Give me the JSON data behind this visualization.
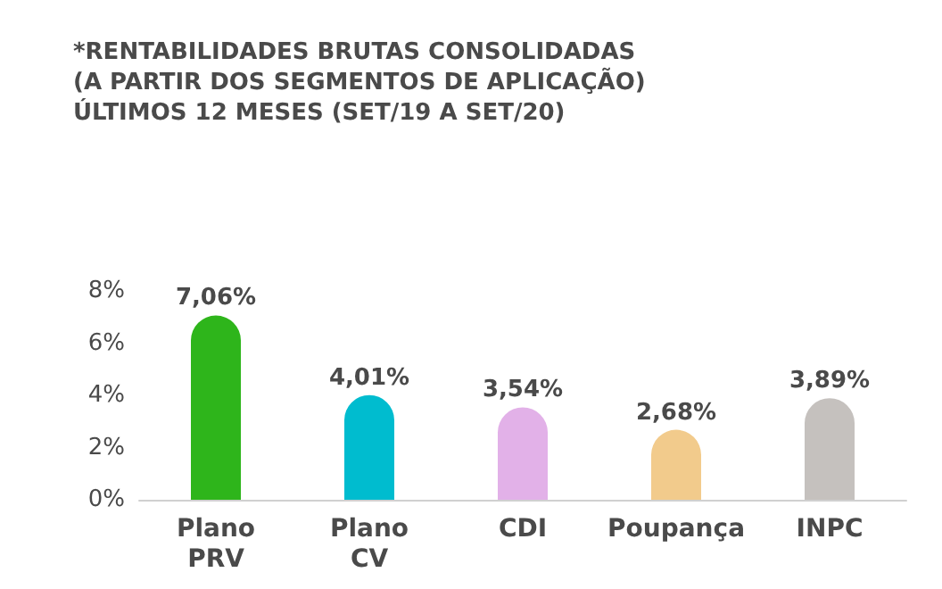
{
  "chart_data": {
    "type": "bar",
    "title": "*RENTABILIDADES BRUTAS CONSOLIDADAS\n(A PARTIR DOS SEGMENTOS DE APLICAÇÃO)\nÚLTIMOS 12 MESES (SET/19 A SET/20)",
    "categories": [
      "Plano PRV",
      "Plano CV",
      "CDI",
      "Poupança",
      "INPC"
    ],
    "values": [
      7.06,
      4.01,
      3.54,
      2.68,
      3.89
    ],
    "colors": [
      "#2eb51b",
      "#00bccf",
      "#e2b1e8",
      "#f2cb8c",
      "#c5c1be"
    ],
    "value_labels": [
      "7,06%",
      "4,01%",
      "3,54%",
      "2,68%",
      "3,89%"
    ],
    "ylim": [
      0,
      8
    ],
    "yticks": [
      {
        "value": 0,
        "label": "0%"
      },
      {
        "value": 2,
        "label": "2%"
      },
      {
        "value": 4,
        "label": "4%"
      },
      {
        "value": 6,
        "label": "6%"
      },
      {
        "value": 8,
        "label": "8%"
      }
    ],
    "grid": false
  }
}
